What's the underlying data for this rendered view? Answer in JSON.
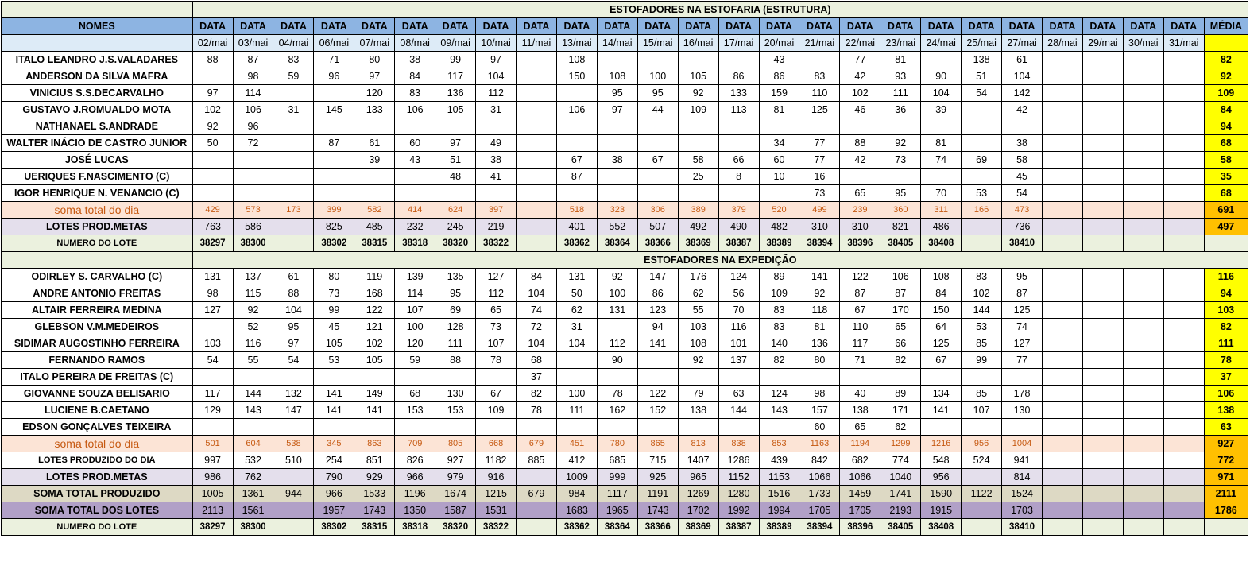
{
  "header": {
    "nomes": "NOMES",
    "data_label": "DATA",
    "media": "MÉDIA",
    "dates": [
      "02/mai",
      "03/mai",
      "04/mai",
      "06/mai",
      "07/mai",
      "08/mai",
      "09/mai",
      "10/mai",
      "11/mai",
      "13/mai",
      "14/mai",
      "15/mai",
      "16/mai",
      "17/mai",
      "20/mai",
      "21/mai",
      "22/mai",
      "23/mai",
      "24/mai",
      "25/mai",
      "27/mai",
      "28/mai",
      "29/mai",
      "30/mai",
      "31/mai"
    ]
  },
  "sections": [
    {
      "title": "ESTOFADORES NA ESTOFARIA (ESTRUTURA)",
      "rows": [
        {
          "type": "worker",
          "name": "ITALO LEANDRO J.S.VALADARES",
          "values": [
            "88",
            "87",
            "83",
            "71",
            "80",
            "38",
            "99",
            "97",
            "",
            "108",
            "",
            "",
            "",
            "",
            "43",
            "",
            "77",
            "81",
            "",
            "138",
            "61",
            "",
            "",
            "",
            ""
          ],
          "avg": "82"
        },
        {
          "type": "worker",
          "name": "ANDERSON DA SILVA MAFRA",
          "values": [
            "",
            "98",
            "59",
            "96",
            "97",
            "84",
            "117",
            "104",
            "",
            "150",
            "108",
            "100",
            "105",
            "86",
            "86",
            "83",
            "42",
            "93",
            "90",
            "51",
            "104",
            "",
            "",
            "",
            ""
          ],
          "avg": "92"
        },
        {
          "type": "worker",
          "name": "VINICIUS S.S.DECARVALHO",
          "values": [
            "97",
            "114",
            "",
            "",
            "120",
            "83",
            "136",
            "112",
            "",
            "",
            "95",
            "95",
            "92",
            "133",
            "159",
            "110",
            "102",
            "111",
            "104",
            "54",
            "142",
            "",
            "",
            "",
            ""
          ],
          "avg": "109"
        },
        {
          "type": "worker",
          "name": "GUSTAVO J.ROMUALDO MOTA",
          "values": [
            "102",
            "106",
            "31",
            "145",
            "133",
            "106",
            "105",
            "31",
            "",
            "106",
            "97",
            "44",
            "109",
            "113",
            "81",
            "125",
            "46",
            "36",
            "39",
            "",
            "42",
            "",
            "",
            "",
            ""
          ],
          "avg": "84"
        },
        {
          "type": "worker",
          "name": "NATHANAEL S.ANDRADE",
          "values": [
            "92",
            "96",
            "",
            "",
            "",
            "",
            "",
            "",
            "",
            "",
            "",
            "",
            "",
            "",
            "",
            "",
            "",
            "",
            "",
            "",
            "",
            "",
            "",
            "",
            ""
          ],
          "avg": "94"
        },
        {
          "type": "worker",
          "name": "WALTER INÁCIO DE CASTRO JUNIOR",
          "values": [
            "50",
            "72",
            "",
            "87",
            "61",
            "60",
            "97",
            "49",
            "",
            "",
            "",
            "",
            "",
            "",
            "34",
            "77",
            "88",
            "92",
            "81",
            "",
            "38",
            "",
            "",
            "",
            ""
          ],
          "avg": "68"
        },
        {
          "type": "worker",
          "name": "JOSÉ LUCAS",
          "values": [
            "",
            "",
            "",
            "",
            "39",
            "43",
            "51",
            "38",
            "",
            "67",
            "38",
            "67",
            "58",
            "66",
            "60",
            "77",
            "42",
            "73",
            "74",
            "69",
            "58",
            "",
            "",
            "",
            ""
          ],
          "avg": "58"
        },
        {
          "type": "worker",
          "name": "UERIQUES F.NASCIMENTO (C)",
          "values": [
            "",
            "",
            "",
            "",
            "",
            "",
            "48",
            "41",
            "",
            "87",
            "",
            "",
            "25",
            "8",
            "10",
            "16",
            "",
            "",
            "",
            "",
            "45",
            "",
            "",
            "",
            ""
          ],
          "avg": "35"
        },
        {
          "type": "worker",
          "name": "IGOR HENRIQUE N. VENANCIO (C)",
          "values": [
            "",
            "",
            "",
            "",
            "",
            "",
            "",
            "",
            "",
            "",
            "",
            "",
            "",
            "",
            "",
            "73",
            "65",
            "95",
            "70",
            "53",
            "54",
            "",
            "",
            "",
            ""
          ],
          "avg": "68"
        },
        {
          "type": "soma",
          "name": "soma total  do dia",
          "values": [
            "429",
            "573",
            "173",
            "399",
            "582",
            "414",
            "624",
            "397",
            "",
            "518",
            "323",
            "306",
            "389",
            "379",
            "520",
            "499",
            "239",
            "360",
            "311",
            "166",
            "473",
            "",
            "",
            "",
            ""
          ],
          "avg": "691"
        },
        {
          "type": "metas",
          "name": "LOTES PROD.METAS",
          "values": [
            "763",
            "586",
            "",
            "825",
            "485",
            "232",
            "245",
            "219",
            "",
            "401",
            "552",
            "507",
            "492",
            "490",
            "482",
            "310",
            "310",
            "821",
            "486",
            "",
            "736",
            "",
            "",
            "",
            ""
          ],
          "avg": "497"
        },
        {
          "type": "lote",
          "name": "NUMERO DO LOTE",
          "values": [
            "38297",
            "38300",
            "",
            "38302",
            "38315",
            "38318",
            "38320",
            "38322",
            "",
            "38362",
            "38364",
            "38366",
            "38369",
            "38387",
            "38389",
            "38394",
            "38396",
            "38405",
            "38408",
            "",
            "38410",
            "",
            "",
            "",
            ""
          ],
          "avg": ""
        }
      ]
    },
    {
      "title": "ESTOFADORES NA EXPEDIÇÃO",
      "rows": [
        {
          "type": "worker",
          "name": "ODIRLEY S. CARVALHO (C)",
          "values": [
            "131",
            "137",
            "61",
            "80",
            "119",
            "139",
            "135",
            "127",
            "84",
            "131",
            "92",
            "147",
            "176",
            "124",
            "89",
            "141",
            "122",
            "106",
            "108",
            "83",
            "95",
            "",
            "",
            "",
            ""
          ],
          "avg": "116"
        },
        {
          "type": "worker",
          "name": "ANDRE ANTONIO FREITAS",
          "values": [
            "98",
            "115",
            "88",
            "73",
            "168",
            "114",
            "95",
            "112",
            "104",
            "50",
            "100",
            "86",
            "62",
            "56",
            "109",
            "92",
            "87",
            "87",
            "84",
            "102",
            "87",
            "",
            "",
            "",
            ""
          ],
          "avg": "94"
        },
        {
          "type": "worker",
          "name": "ALTAIR FERREIRA MEDINA",
          "values": [
            "127",
            "92",
            "104",
            "99",
            "122",
            "107",
            "69",
            "65",
            "74",
            "62",
            "131",
            "123",
            "55",
            "70",
            "83",
            "118",
            "67",
            "170",
            "150",
            "144",
            "125",
            "",
            "",
            "",
            ""
          ],
          "avg": "103"
        },
        {
          "type": "worker",
          "name": "GLEBSON V.M.MEDEIROS",
          "values": [
            "",
            "52",
            "95",
            "45",
            "121",
            "100",
            "128",
            "73",
            "72",
            "31",
            "",
            "94",
            "103",
            "116",
            "83",
            "81",
            "110",
            "65",
            "64",
            "53",
            "74",
            "",
            "",
            "",
            ""
          ],
          "avg": "82"
        },
        {
          "type": "worker",
          "name": "SIDIMAR AUGOSTINHO FERREIRA",
          "values": [
            "103",
            "116",
            "97",
            "105",
            "102",
            "120",
            "111",
            "107",
            "104",
            "104",
            "112",
            "141",
            "108",
            "101",
            "140",
            "136",
            "117",
            "66",
            "125",
            "85",
            "127",
            "",
            "",
            "",
            ""
          ],
          "avg": "111"
        },
        {
          "type": "worker",
          "name": "FERNANDO RAMOS",
          "values": [
            "54",
            "55",
            "54",
            "53",
            "105",
            "59",
            "88",
            "78",
            "68",
            "",
            "90",
            "",
            "92",
            "137",
            "82",
            "80",
            "71",
            "82",
            "67",
            "99",
            "77",
            "",
            "",
            "",
            ""
          ],
          "avg": "78"
        },
        {
          "type": "worker",
          "name": "ITALO PEREIRA DE FREITAS (C)",
          "values": [
            "",
            "",
            "",
            "",
            "",
            "",
            "",
            "",
            "37",
            "",
            "",
            "",
            "",
            "",
            "",
            "",
            "",
            "",
            "",
            "",
            "",
            "",
            "",
            "",
            ""
          ],
          "avg": "37"
        },
        {
          "type": "worker",
          "name": "GIOVANNE SOUZA BELISARIO",
          "values": [
            "117",
            "144",
            "132",
            "141",
            "149",
            "68",
            "130",
            "67",
            "82",
            "100",
            "78",
            "122",
            "79",
            "63",
            "124",
            "98",
            "40",
            "89",
            "134",
            "85",
            "178",
            "",
            "",
            "",
            ""
          ],
          "avg": "106"
        },
        {
          "type": "worker",
          "name": "LUCIENE B.CAETANO",
          "values": [
            "129",
            "143",
            "147",
            "141",
            "141",
            "153",
            "153",
            "109",
            "78",
            "111",
            "162",
            "152",
            "138",
            "144",
            "143",
            "157",
            "138",
            "171",
            "141",
            "107",
            "130",
            "",
            "",
            "",
            ""
          ],
          "avg": "138"
        },
        {
          "type": "worker",
          "name": "EDSON GONÇALVES TEIXEIRA",
          "values": [
            "",
            "",
            "",
            "",
            "",
            "",
            "",
            "",
            "",
            "",
            "",
            "",
            "",
            "",
            "",
            "60",
            "65",
            "62",
            "",
            "",
            "",
            "",
            "",
            "",
            ""
          ],
          "avg": "63"
        },
        {
          "type": "soma",
          "name": "soma total  do dia",
          "values": [
            "501",
            "604",
            "538",
            "345",
            "863",
            "709",
            "805",
            "668",
            "679",
            "451",
            "780",
            "865",
            "813",
            "838",
            "853",
            "1163",
            "1194",
            "1299",
            "1216",
            "956",
            "1004",
            "",
            "",
            "",
            ""
          ],
          "avg": "927"
        },
        {
          "type": "prod",
          "name": "LOTES PRODUZIDO DO DIA",
          "values": [
            "997",
            "532",
            "510",
            "254",
            "851",
            "826",
            "927",
            "1182",
            "885",
            "412",
            "685",
            "715",
            "1407",
            "1286",
            "439",
            "842",
            "682",
            "774",
            "548",
            "524",
            "941",
            "",
            "",
            "",
            ""
          ],
          "avg": "772"
        },
        {
          "type": "metas",
          "name": "LOTES PROD.METAS",
          "values": [
            "986",
            "762",
            "",
            "790",
            "929",
            "966",
            "979",
            "916",
            "",
            "1009",
            "999",
            "925",
            "965",
            "1152",
            "1153",
            "1066",
            "1066",
            "1040",
            "956",
            "",
            "814",
            "",
            "",
            "",
            ""
          ],
          "avg": "971"
        },
        {
          "type": "totprod",
          "name": "SOMA TOTAL PRODUZIDO",
          "values": [
            "1005",
            "1361",
            "944",
            "966",
            "1533",
            "1196",
            "1674",
            "1215",
            "679",
            "984",
            "1117",
            "1191",
            "1269",
            "1280",
            "1516",
            "1733",
            "1459",
            "1741",
            "1590",
            "1122",
            "1524",
            "",
            "",
            "",
            ""
          ],
          "avg": "2111"
        },
        {
          "type": "totlotes",
          "name": "SOMA TOTAL DOS LOTES",
          "values": [
            "2113",
            "1561",
            "",
            "1957",
            "1743",
            "1350",
            "1587",
            "1531",
            "",
            "1683",
            "1965",
            "1743",
            "1702",
            "1992",
            "1994",
            "1705",
            "1705",
            "2193",
            "1915",
            "",
            "1703",
            "",
            "",
            "",
            ""
          ],
          "avg": "1786"
        },
        {
          "type": "lote",
          "name": "NUMERO DO LOTE",
          "values": [
            "38297",
            "38300",
            "",
            "38302",
            "38315",
            "38318",
            "38320",
            "38322",
            "",
            "38362",
            "38364",
            "38366",
            "38369",
            "38387",
            "38389",
            "38394",
            "38396",
            "38405",
            "38408",
            "",
            "38410",
            "",
            "",
            "",
            ""
          ],
          "avg": ""
        }
      ]
    }
  ]
}
